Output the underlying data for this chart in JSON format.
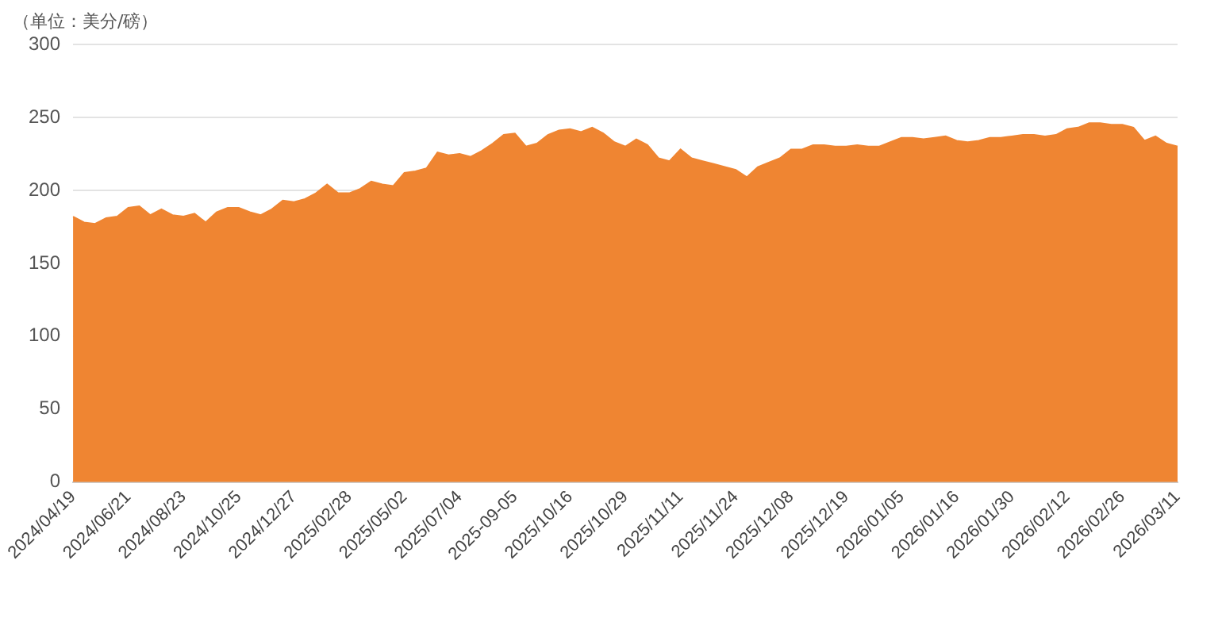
{
  "chart_data": {
    "type": "area",
    "ylabel": "（单位：美分/磅）",
    "categories": [
      "2024/04/19",
      null,
      null,
      null,
      null,
      "2024/06/21",
      null,
      null,
      null,
      null,
      "2024/08/23",
      null,
      null,
      null,
      null,
      "2024/10/25",
      null,
      null,
      null,
      null,
      "2024/12/27",
      null,
      null,
      null,
      null,
      "2025/02/28",
      null,
      null,
      null,
      null,
      "2025/05/02",
      null,
      null,
      null,
      null,
      "2025/07/04",
      null,
      null,
      null,
      null,
      "2025-09-05",
      null,
      null,
      null,
      null,
      "2025/10/16",
      null,
      null,
      null,
      null,
      "2025/10/29",
      null,
      null,
      null,
      null,
      "2025/11/11",
      null,
      null,
      null,
      null,
      "2025/11/24",
      null,
      null,
      null,
      null,
      "2025/12/08",
      null,
      null,
      null,
      null,
      "2025/12/19",
      null,
      null,
      null,
      null,
      "2026/01/05",
      null,
      null,
      null,
      null,
      "2026/01/16",
      null,
      null,
      null,
      null,
      "2026/01/30",
      null,
      null,
      null,
      null,
      "2026/02/12",
      null,
      null,
      null,
      null,
      "2026/02/26",
      null,
      null,
      null,
      null,
      "2026/03/11"
    ],
    "series": [
      {
        "color": "#ef8532",
        "values": [
          182,
          178,
          177,
          181,
          182,
          188,
          189,
          183,
          187,
          183,
          182,
          184,
          178,
          185,
          188,
          188,
          185,
          183,
          187,
          193,
          192,
          194,
          198,
          204,
          198,
          198,
          201,
          206,
          204,
          203,
          212,
          213,
          215,
          226,
          224,
          225,
          223,
          227,
          232,
          238,
          239,
          230,
          232,
          238,
          241,
          242,
          240,
          243,
          239,
          233,
          230,
          235,
          231,
          222,
          220,
          228,
          222,
          220,
          218,
          216,
          214,
          209,
          216,
          219,
          222,
          228,
          228,
          231,
          231,
          230,
          230,
          231,
          230,
          230,
          233,
          236,
          236,
          235,
          236,
          237,
          234,
          233,
          234,
          236,
          236,
          237,
          238,
          238,
          237,
          238,
          242,
          243,
          246,
          246,
          245,
          245,
          243,
          234,
          237,
          232,
          230
        ]
      }
    ],
    "ylim": [
      0,
      300
    ],
    "yticks": [
      0,
      50,
      100,
      150,
      200,
      250,
      300
    ],
    "grid": "y"
  }
}
